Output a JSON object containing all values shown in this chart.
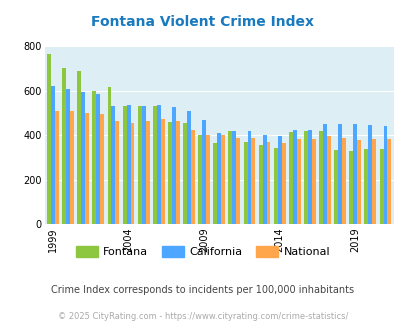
{
  "title": "Fontana Violent Crime Index",
  "title_color": "#1a7abf",
  "years": [
    1999,
    2000,
    2001,
    2002,
    2003,
    2004,
    2005,
    2006,
    2007,
    2008,
    2009,
    2010,
    2011,
    2012,
    2013,
    2014,
    2015,
    2016,
    2017,
    2018,
    2019,
    2020,
    2021
  ],
  "fontana": [
    765,
    700,
    690,
    600,
    615,
    530,
    530,
    530,
    460,
    455,
    400,
    365,
    420,
    370,
    355,
    345,
    415,
    420,
    420,
    335,
    330,
    340,
    340
  ],
  "california": [
    620,
    610,
    595,
    585,
    530,
    535,
    530,
    535,
    525,
    510,
    470,
    410,
    420,
    420,
    400,
    395,
    425,
    425,
    450,
    450,
    450,
    445,
    440
  ],
  "national": [
    507,
    508,
    500,
    495,
    465,
    455,
    465,
    475,
    465,
    425,
    400,
    400,
    390,
    390,
    370,
    365,
    385,
    385,
    395,
    390,
    380,
    385,
    385
  ],
  "fontana_color": "#8dc63f",
  "california_color": "#4da6ff",
  "national_color": "#ffa64d",
  "plot_bg_color": "#ddeef5",
  "ylim": [
    0,
    800
  ],
  "yticks": [
    0,
    200,
    400,
    600,
    800
  ],
  "xtick_years": [
    1999,
    2004,
    2009,
    2014,
    2019
  ],
  "legend_labels": [
    "Fontana",
    "California",
    "National"
  ],
  "footnote1": "Crime Index corresponds to incidents per 100,000 inhabitants",
  "footnote2": "© 2025 CityRating.com - https://www.cityrating.com/crime-statistics/",
  "footnote1_color": "#444444",
  "footnote2_color": "#aaaaaa",
  "bar_width": 0.26
}
